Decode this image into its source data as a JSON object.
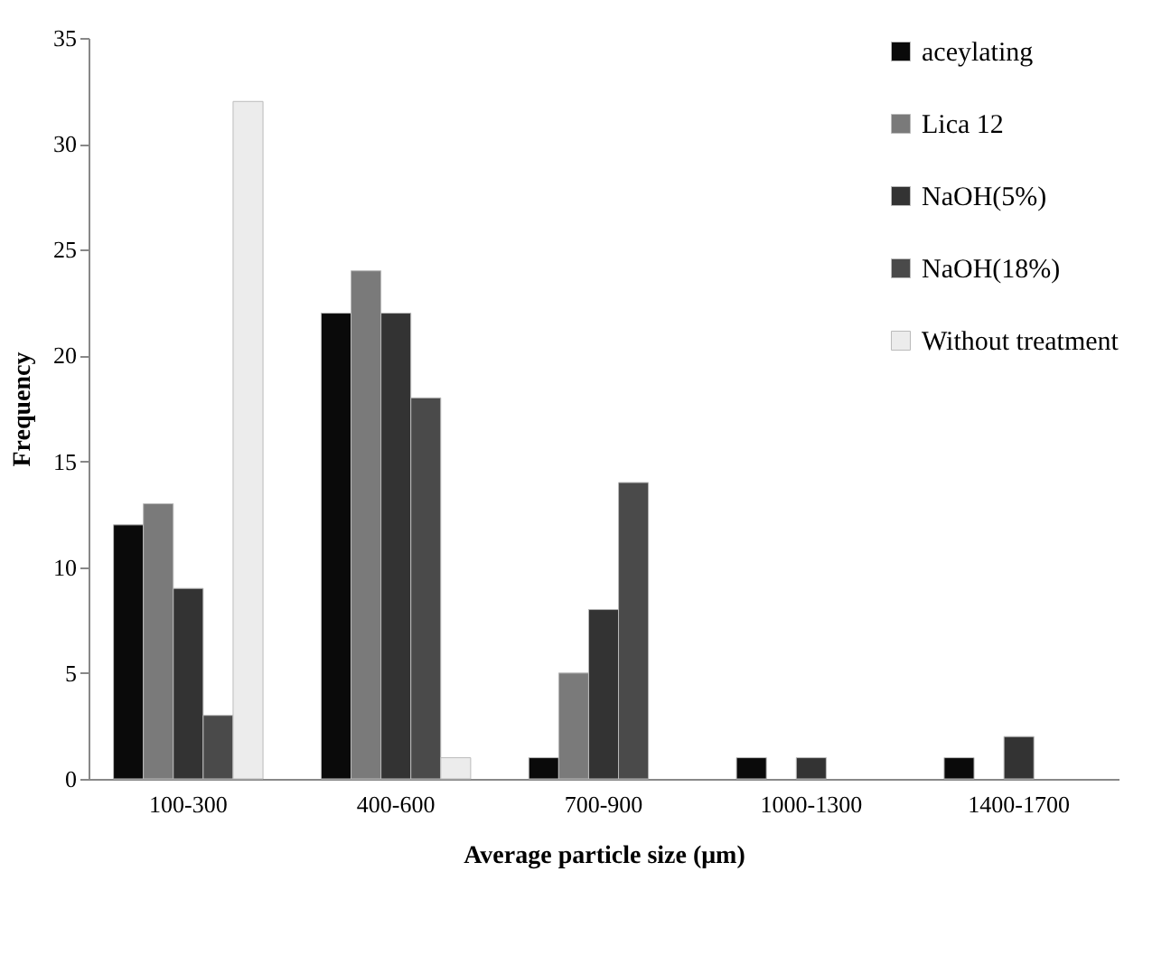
{
  "chart_data": {
    "type": "bar",
    "xlabel": "Average particle size (μm)",
    "ylabel": "Frequency",
    "categories": [
      "100-300",
      "400-600",
      "700-900",
      "1000-1300",
      "1400-1700"
    ],
    "series": [
      {
        "name": "aceylating",
        "color": "#0a0a0a",
        "values": [
          12,
          22,
          1,
          1,
          1
        ]
      },
      {
        "name": "Lica 12",
        "color": "#7a7a7a",
        "values": [
          13,
          24,
          5,
          null,
          null
        ]
      },
      {
        "name": "NaOH(5%)",
        "color": "#333333",
        "values": [
          9,
          22,
          8,
          1,
          2
        ]
      },
      {
        "name": "NaOH(18%)",
        "color": "#4a4a4a",
        "values": [
          3,
          18,
          14,
          null,
          null
        ]
      },
      {
        "name": "Without treatment",
        "color": "#ececec",
        "values": [
          32,
          1,
          null,
          null,
          null
        ]
      }
    ],
    "ylim": [
      0,
      35
    ],
    "yticks": [
      0,
      5,
      10,
      15,
      20,
      25,
      30,
      35
    ],
    "grid": false,
    "legend": "top right"
  }
}
